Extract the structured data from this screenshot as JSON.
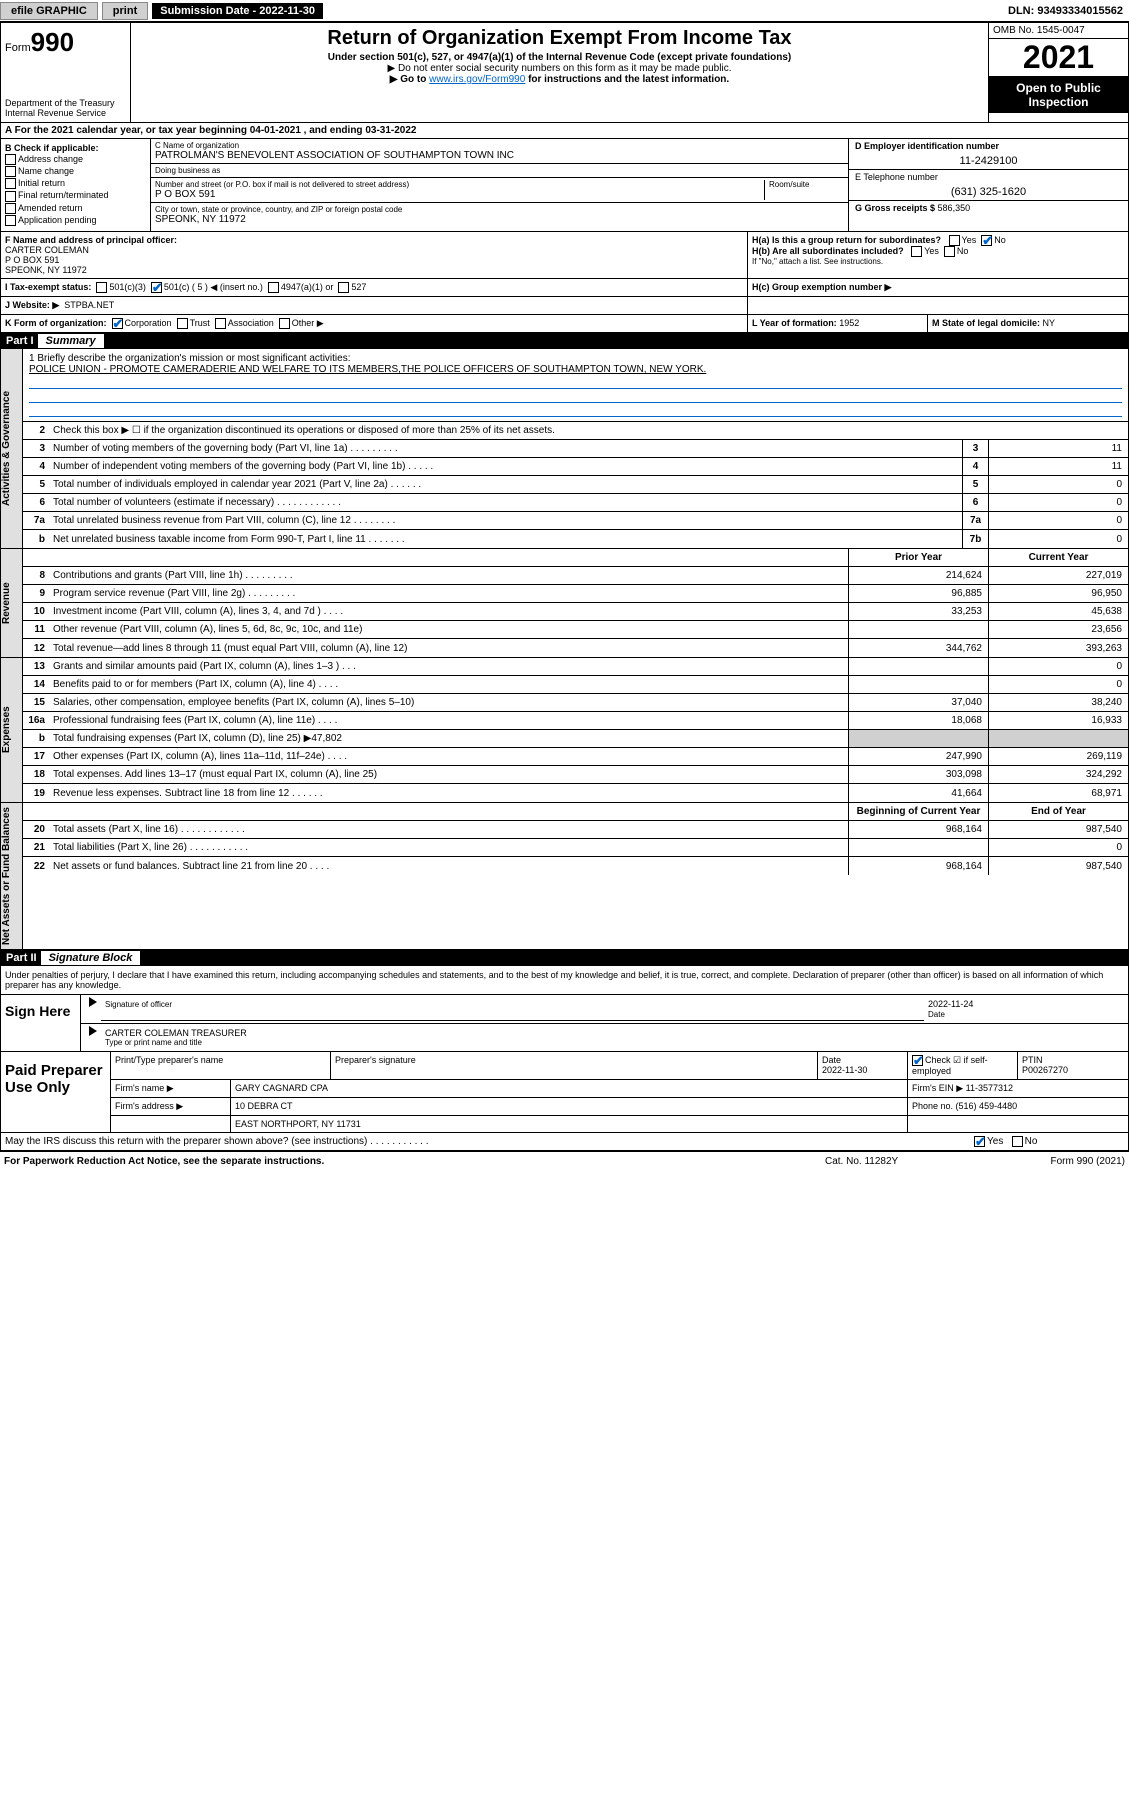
{
  "topbar": {
    "efile": "efile GRAPHIC",
    "print": "print",
    "submission_label": "Submission Date - ",
    "submission_date": "2022-11-30",
    "dln_label": "DLN: ",
    "dln": "93493334015562"
  },
  "header": {
    "form_label": "Form",
    "form_no": "990",
    "dept": "Department of the Treasury\nInternal Revenue Service",
    "title": "Return of Organization Exempt From Income Tax",
    "sub1": "Under section 501(c), 527, or 4947(a)(1) of the Internal Revenue Code (except private foundations)",
    "sub2": "▶ Do not enter social security numbers on this form as it may be made public.",
    "sub3_pre": "▶ Go to ",
    "sub3_link": "www.irs.gov/Form990",
    "sub3_post": " for instructions and the latest information.",
    "omb": "OMB No. 1545-0047",
    "year": "2021",
    "pub": "Open to Public Inspection"
  },
  "row_a": "A For the 2021 calendar year, or tax year beginning 04-01-2021   , and ending 03-31-2022",
  "col_b": {
    "label": "B Check if applicable:",
    "opts": [
      "Address change",
      "Name change",
      "Initial return",
      "Final return/terminated",
      "Amended return",
      "Application pending"
    ]
  },
  "col_c": {
    "name_lbl": "C Name of organization",
    "name": "PATROLMAN'S BENEVOLENT ASSOCIATION OF SOUTHAMPTON TOWN INC",
    "dba_lbl": "Doing business as",
    "dba": "",
    "addr_lbl": "Number and street (or P.O. box if mail is not delivered to street address)",
    "room_lbl": "Room/suite",
    "addr": "P O BOX 591",
    "city_lbl": "City or town, state or province, country, and ZIP or foreign postal code",
    "city": "SPEONK, NY  11972"
  },
  "col_d": {
    "ein_lbl": "D Employer identification number",
    "ein": "11-2429100",
    "tel_lbl": "E Telephone number",
    "tel": "(631) 325-1620",
    "gross_lbl": "G Gross receipts $ ",
    "gross": "586,350"
  },
  "row_f": {
    "lbl": "F Name and address of principal officer:",
    "name": "CARTER COLEMAN",
    "addr1": "P O BOX 591",
    "addr2": "SPEONK, NY  11972"
  },
  "row_h": {
    "ha": "H(a)  Is this a group return for subordinates?",
    "ha_yes": "Yes",
    "ha_no": "No",
    "hb": "H(b)  Are all subordinates included?",
    "hb_note": "If \"No,\" attach a list. See instructions.",
    "hc": "H(c)  Group exemption number ▶"
  },
  "row_i": {
    "lbl": "I   Tax-exempt status:",
    "o1": "501(c)(3)",
    "o2": "501(c) ( 5 ) ◀ (insert no.)",
    "o3": "4947(a)(1) or",
    "o4": "527"
  },
  "row_j": {
    "lbl": "J   Website: ▶",
    "val": "STPBA.NET"
  },
  "row_k": {
    "lbl": "K Form of organization:",
    "opts": [
      "Corporation",
      "Trust",
      "Association",
      "Other ▶"
    ]
  },
  "row_l": {
    "lbl": "L Year of formation: ",
    "val": "1952"
  },
  "row_m": {
    "lbl": "M State of legal domicile: ",
    "val": "NY"
  },
  "part1": {
    "num": "Part I",
    "title": "Summary"
  },
  "mission": {
    "lbl": "1  Briefly describe the organization's mission or most significant activities:",
    "text": "POLICE UNION - PROMOTE CAMERADERIE AND WELFARE TO ITS MEMBERS,THE POLICE OFFICERS OF SOUTHAMPTON TOWN, NEW YORK."
  },
  "vlabels": {
    "gov": "Activities & Governance",
    "rev": "Revenue",
    "exp": "Expenses",
    "net": "Net Assets or Fund Balances"
  },
  "gov_lines": [
    {
      "n": "2",
      "t": "Check this box ▶ ☐  if the organization discontinued its operations or disposed of more than 25% of its net assets."
    },
    {
      "n": "3",
      "t": "Number of voting members of the governing body (Part VI, line 1a)   .    .    .    .    .    .    .    .    .",
      "box": "3",
      "v": "11"
    },
    {
      "n": "4",
      "t": "Number of independent voting members of the governing body (Part VI, line 1b)   .    .    .    .    .",
      "box": "4",
      "v": "11"
    },
    {
      "n": "5",
      "t": "Total number of individuals employed in calendar year 2021 (Part V, line 2a)   .    .    .    .    .    .",
      "box": "5",
      "v": "0"
    },
    {
      "n": "6",
      "t": "Total number of volunteers (estimate if necessary)   .    .    .    .    .    .    .    .    .    .    .    .",
      "box": "6",
      "v": "0"
    },
    {
      "n": "7a",
      "t": "Total unrelated business revenue from Part VIII, column (C), line 12   .    .    .    .    .    .    .    .",
      "box": "7a",
      "v": "0"
    },
    {
      "n": "b",
      "t": "Net unrelated business taxable income from Form 990-T, Part I, line 11   .    .    .    .    .    .    .",
      "box": "7b",
      "v": "0"
    }
  ],
  "colhdr": {
    "prior": "Prior Year",
    "current": "Current Year"
  },
  "rev_lines": [
    {
      "n": "8",
      "t": "Contributions and grants (Part VIII, line 1h)   .    .    .    .    .    .    .    .    .",
      "p": "214,624",
      "c": "227,019"
    },
    {
      "n": "9",
      "t": "Program service revenue (Part VIII, line 2g)   .    .    .    .    .    .    .    .    .",
      "p": "96,885",
      "c": "96,950"
    },
    {
      "n": "10",
      "t": "Investment income (Part VIII, column (A), lines 3, 4, and 7d )   .    .    .    .",
      "p": "33,253",
      "c": "45,638"
    },
    {
      "n": "11",
      "t": "Other revenue (Part VIII, column (A), lines 5, 6d, 8c, 9c, 10c, and 11e)",
      "p": "",
      "c": "23,656"
    },
    {
      "n": "12",
      "t": "Total revenue—add lines 8 through 11 (must equal Part VIII, column (A), line 12)",
      "p": "344,762",
      "c": "393,263"
    }
  ],
  "exp_lines": [
    {
      "n": "13",
      "t": "Grants and similar amounts paid (Part IX, column (A), lines 1–3 )   .    .    .",
      "p": "",
      "c": "0"
    },
    {
      "n": "14",
      "t": "Benefits paid to or for members (Part IX, column (A), line 4)   .    .    .    .",
      "p": "",
      "c": "0"
    },
    {
      "n": "15",
      "t": "Salaries, other compensation, employee benefits (Part IX, column (A), lines 5–10)",
      "p": "37,040",
      "c": "38,240"
    },
    {
      "n": "16a",
      "t": "Professional fundraising fees (Part IX, column (A), line 11e)   .    .    .    .",
      "p": "18,068",
      "c": "16,933"
    },
    {
      "n": "b",
      "t": "Total fundraising expenses (Part IX, column (D), line 25) ▶47,802",
      "shade": true
    },
    {
      "n": "17",
      "t": "Other expenses (Part IX, column (A), lines 11a–11d, 11f–24e)   .    .    .    .",
      "p": "247,990",
      "c": "269,119"
    },
    {
      "n": "18",
      "t": "Total expenses. Add lines 13–17 (must equal Part IX, column (A), line 25)",
      "p": "303,098",
      "c": "324,292"
    },
    {
      "n": "19",
      "t": "Revenue less expenses. Subtract line 18 from line 12   .    .    .    .    .    .",
      "p": "41,664",
      "c": "68,971"
    }
  ],
  "net_hdr": {
    "beg": "Beginning of Current Year",
    "end": "End of Year"
  },
  "net_lines": [
    {
      "n": "20",
      "t": "Total assets (Part X, line 16)   .    .    .    .    .    .    .    .    .    .    .    .",
      "p": "968,164",
      "c": "987,540"
    },
    {
      "n": "21",
      "t": "Total liabilities (Part X, line 26)   .    .    .    .    .    .    .    .    .    .    .",
      "p": "",
      "c": "0"
    },
    {
      "n": "22",
      "t": "Net assets or fund balances. Subtract line 21 from line 20   .    .    .    .",
      "p": "968,164",
      "c": "987,540"
    }
  ],
  "part2": {
    "num": "Part II",
    "title": "Signature Block"
  },
  "sig_decl": "Under penalties of perjury, I declare that I have examined this return, including accompanying schedules and statements, and to the best of my knowledge and belief, it is true, correct, and complete. Declaration of preparer (other than officer) is based on all information of which preparer has any knowledge.",
  "sign": {
    "here": "Sign Here",
    "sig_lbl": "Signature of officer",
    "date_lbl": "Date",
    "date": "2022-11-24",
    "name_lbl": "Type or print name and title",
    "name": "CARTER COLEMAN  TREASURER"
  },
  "paid": {
    "here": "Paid Preparer Use Only",
    "h1": "Print/Type preparer's name",
    "h2": "Preparer's signature",
    "h3": "Date",
    "h3v": "2022-11-30",
    "h4": "Check ☑ if self-employed",
    "h5": "PTIN",
    "h5v": "P00267270",
    "firm_lbl": "Firm's name    ▶",
    "firm": "GARY CAGNARD CPA",
    "ein_lbl": "Firm's EIN ▶",
    "ein": "11-3577312",
    "addr_lbl": "Firm's address ▶",
    "addr1": "10 DEBRA CT",
    "addr2": "EAST NORTHPORT, NY  11731",
    "phone_lbl": "Phone no. ",
    "phone": "(516) 459-4480"
  },
  "discuss": {
    "t": "May the IRS discuss this return with the preparer shown above? (see instructions)   .    .    .    .    .    .    .    .    .    .    .",
    "yes": "Yes",
    "no": "No"
  },
  "footer": {
    "l": "For Paperwork Reduction Act Notice, see the separate instructions.",
    "m": "Cat. No. 11282Y",
    "r": "Form 990 (2021)"
  },
  "colors": {
    "link": "#0066cc",
    "shade": "#d0d0d0",
    "sidebar": "#e0e0e0"
  }
}
